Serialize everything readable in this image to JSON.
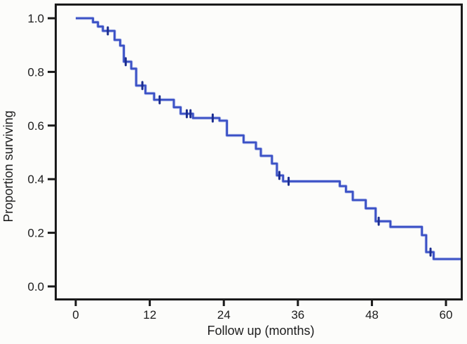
{
  "figure": {
    "background": "#fcfcfa",
    "axis_color": "#1a1a1a",
    "text_color": "#1c1c1c"
  },
  "chart_data": {
    "type": "line",
    "subtype": "kaplan-meier-step-curve",
    "title": "",
    "xlabel": "Follow up (months)",
    "ylabel": "Proportion surviving",
    "x_tick_labels": [
      "0",
      "12",
      "24",
      "36",
      "48",
      "60"
    ],
    "x_tick_values": [
      0,
      12,
      24,
      36,
      48,
      60
    ],
    "y_tick_labels": [
      "0.0",
      "0.2",
      "0.4",
      "0.6",
      "0.8",
      "1.0"
    ],
    "y_tick_values": [
      0,
      0.2,
      0.4,
      0.6,
      0.8,
      1.0
    ],
    "xlim": [
      -3.4,
      62.7
    ],
    "ylim": [
      -0.05,
      1.06
    ],
    "grid": false,
    "legend_position": "none",
    "line_color": "#3b51c5",
    "line_halo_color": "#9aa9e9",
    "censor_color": "#1b2d8f",
    "series": [
      {
        "name": "proportion-surviving",
        "start": {
          "t": 0,
          "s": 1.0
        },
        "end_time": 62.5,
        "steps": [
          [
            2.8,
            0.985
          ],
          [
            3.6,
            0.969
          ],
          [
            4.4,
            0.953
          ],
          [
            6.3,
            0.919
          ],
          [
            7.2,
            0.898
          ],
          [
            7.8,
            0.838
          ],
          [
            9.0,
            0.812
          ],
          [
            9.8,
            0.749
          ],
          [
            11.3,
            0.72
          ],
          [
            12.7,
            0.696
          ],
          [
            15.9,
            0.668
          ],
          [
            17.0,
            0.644
          ],
          [
            19.0,
            0.628
          ],
          [
            23.3,
            0.618
          ],
          [
            24.5,
            0.563
          ],
          [
            27.2,
            0.537
          ],
          [
            29.2,
            0.513
          ],
          [
            30.0,
            0.487
          ],
          [
            31.8,
            0.458
          ],
          [
            32.6,
            0.414
          ],
          [
            33.6,
            0.392
          ],
          [
            42.8,
            0.374
          ],
          [
            43.8,
            0.353
          ],
          [
            44.9,
            0.322
          ],
          [
            47.0,
            0.291
          ],
          [
            48.6,
            0.243
          ],
          [
            51.0,
            0.222
          ],
          [
            56.1,
            0.191
          ],
          [
            56.8,
            0.128
          ],
          [
            58.0,
            0.102
          ]
        ],
        "censor_marks": [
          [
            5.2,
            0.953
          ],
          [
            8.1,
            0.838
          ],
          [
            10.8,
            0.749
          ],
          [
            13.6,
            0.696
          ],
          [
            18.0,
            0.644
          ],
          [
            18.6,
            0.644
          ],
          [
            22.2,
            0.628
          ],
          [
            33.0,
            0.414
          ],
          [
            34.5,
            0.392
          ],
          [
            49.1,
            0.243
          ],
          [
            57.5,
            0.128
          ]
        ]
      }
    ]
  }
}
